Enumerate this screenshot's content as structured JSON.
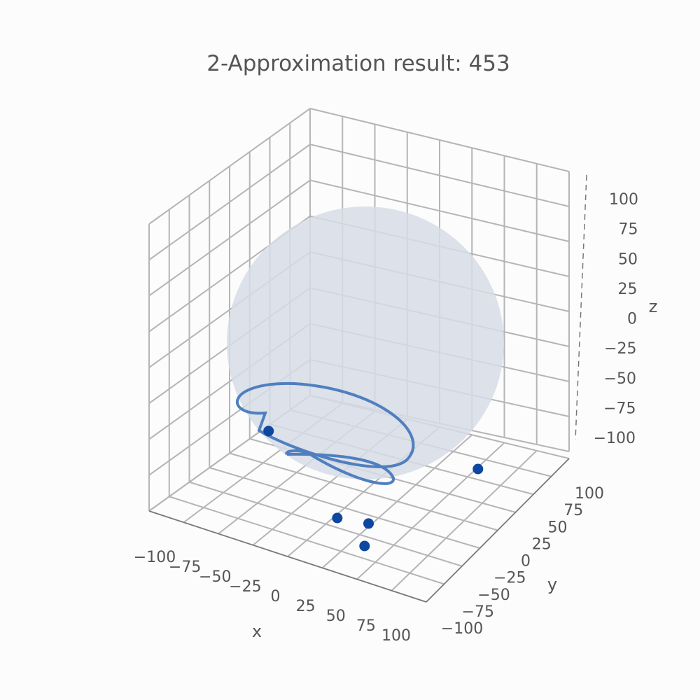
{
  "chart_data": {
    "type": "scatter",
    "title": "2-Approximation result: 453",
    "xlabel": "x",
    "ylabel": "y",
    "zlabel": "z",
    "xlim": [
      -100,
      100
    ],
    "ylim": [
      -100,
      100
    ],
    "zlim": [
      -100,
      100
    ],
    "x_ticks": [
      "−100",
      "−75",
      "−50",
      "−25",
      "0",
      "25",
      "50",
      "75",
      "100"
    ],
    "y_ticks": [
      "−100",
      "−75",
      "−50",
      "−25",
      "0",
      "25",
      "50",
      "75",
      "100"
    ],
    "z_ticks": [
      "−100",
      "−75",
      "−50",
      "−25",
      "0",
      "25",
      "50",
      "75",
      "100"
    ],
    "grid": true,
    "sphere": {
      "center": [
        0,
        0,
        0
      ],
      "radius": 100,
      "color": "#d6dce6"
    },
    "series": [
      {
        "points": [
          {
            "x": -55,
            "y": -20,
            "z": -70
          },
          {
            "x": 60,
            "y": 50,
            "z": -95
          },
          {
            "x": 30,
            "y": -45,
            "z": -95
          },
          {
            "x": 10,
            "y": -50,
            "z": -95
          },
          {
            "x": 40,
            "y": -70,
            "z": -95
          }
        ],
        "color": "#0d47a1",
        "line_color": "#4f7fbf"
      }
    ]
  }
}
